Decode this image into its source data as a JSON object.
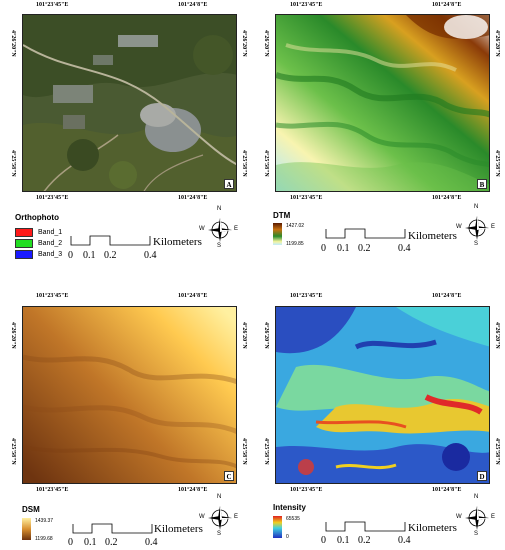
{
  "coords": {
    "top_left": "101°23'45\"E",
    "top_right": "101°24'8\"E",
    "left_upper": "4°26'20\"N",
    "left_lower": "4°25'58\"N"
  },
  "panels": {
    "a": {
      "letter": "A",
      "legend_title": "Orthophoto",
      "bands": [
        {
          "label": "Band_1",
          "color": "#ff1a1a"
        },
        {
          "label": "Band_2",
          "color": "#22dd22"
        },
        {
          "label": "Band_3",
          "color": "#1a1aff"
        }
      ]
    },
    "b": {
      "letter": "B",
      "legend_title": "DTM",
      "max": "1427.02",
      "min": "1199.85"
    },
    "c": {
      "letter": "C",
      "legend_title": "DSM",
      "max": "1439.37",
      "min": "1199.68"
    },
    "d": {
      "letter": "D",
      "legend_title": "Intensity",
      "max": "65535",
      "min": "0"
    }
  },
  "scalebar": {
    "ticks": [
      "0",
      "0.1",
      "0.2",
      "0.4"
    ],
    "unit": "Kilometers"
  },
  "compass": {
    "n": "N",
    "s": "S",
    "e": "E",
    "w": "W"
  },
  "colors": {
    "dtm_low": "#fff3a8",
    "dtm_mid": "#2e9b2e",
    "dtm_high": "#7a3000",
    "dsm_low": "#7a3a10",
    "dsm_high": "#ffd24a"
  }
}
